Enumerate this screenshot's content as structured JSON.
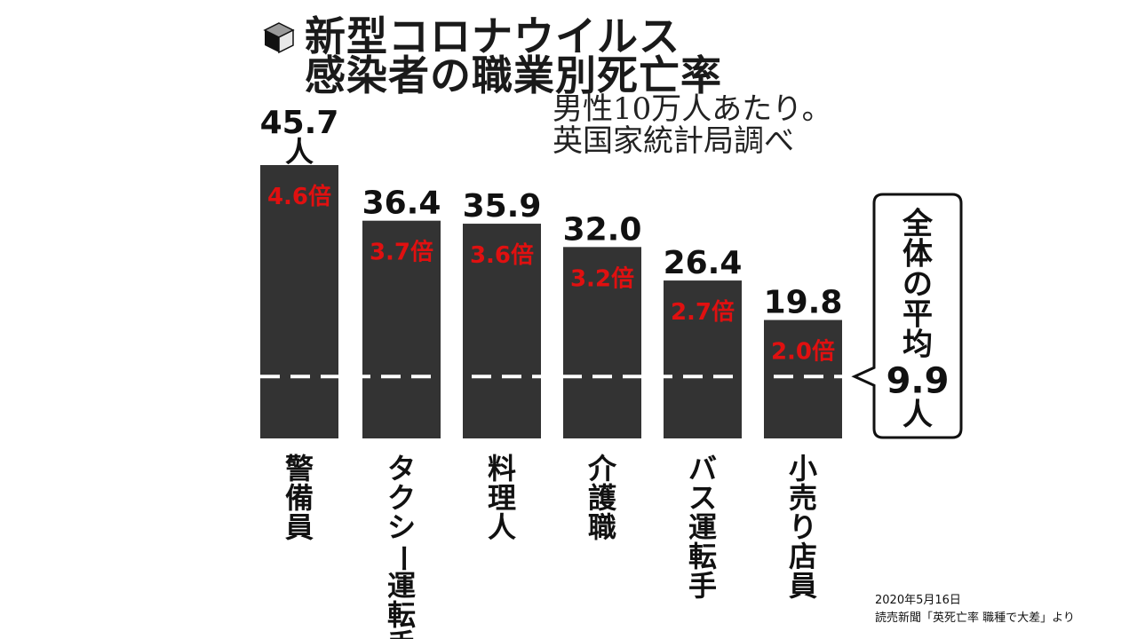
{
  "title": {
    "line1": "新型コロナウイルス",
    "line2": "感染者の職業別死亡率"
  },
  "subtitle": {
    "line1": "男性10万人あたり。",
    "line2": "英国家統計局調べ"
  },
  "source": {
    "date": "2020年5月16日",
    "citation": "読売新聞「英死亡率 職種で大差」より"
  },
  "colors": {
    "bar": "#333333",
    "ratio": "#e01010",
    "dashed_line": "#ffffff"
  },
  "icon": "cube-icon",
  "chart_data": {
    "type": "bar",
    "categories": [
      "警備員",
      "タクシー運転手",
      "料理人",
      "介護職",
      "バス運転手",
      "小売り店員"
    ],
    "values": [
      45.7,
      36.4,
      35.9,
      32.0,
      26.4,
      19.8
    ],
    "value_labels": [
      "45.7",
      "36.4",
      "35.9",
      "32.0",
      "26.4",
      "19.8"
    ],
    "first_value_unit": "人",
    "ratio_labels": [
      "4.6倍",
      "3.7倍",
      "3.6倍",
      "3.2倍",
      "2.7倍",
      "2.0倍"
    ],
    "average": {
      "label_chars": [
        "全",
        "体",
        "の",
        "平",
        "均"
      ],
      "value": 9.9,
      "value_label": "9.9",
      "unit": "人"
    },
    "ylim": [
      0,
      45.7
    ],
    "legend": "none"
  }
}
